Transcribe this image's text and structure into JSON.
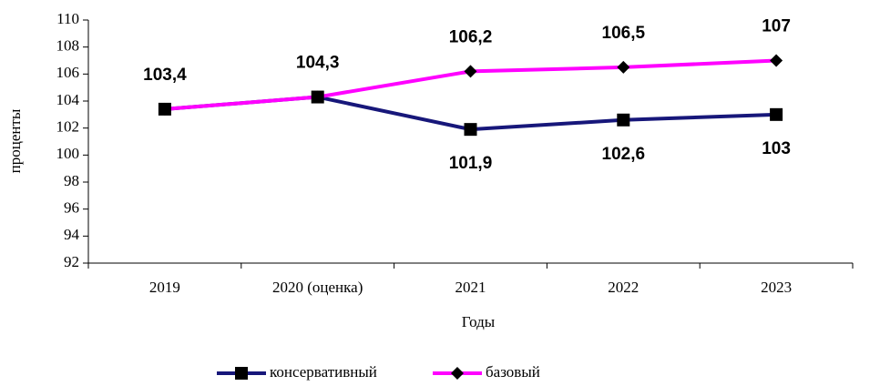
{
  "chart_data": {
    "type": "line",
    "xlabel": "Годы",
    "ylabel": "проценты",
    "categories": [
      "2019",
      "2020 (оценка)",
      "2021",
      "2022",
      "2023"
    ],
    "series": [
      {
        "name": "консервативный",
        "color": "#17177a",
        "marker": "square",
        "values": [
          103.4,
          104.3,
          101.9,
          102.6,
          103
        ],
        "value_labels": [
          "103,4",
          "104,3",
          "101,9",
          "102,6",
          "103"
        ]
      },
      {
        "name": "базовый",
        "color": "#ff00ff",
        "marker": "diamond",
        "values": [
          103.4,
          104.3,
          106.2,
          106.5,
          107
        ],
        "value_labels": [
          null,
          null,
          "106,2",
          "106,5",
          "107"
        ]
      }
    ],
    "ylim": [
      92,
      110
    ],
    "yticks": [
      92,
      94,
      96,
      98,
      100,
      102,
      104,
      106,
      108,
      110
    ],
    "grid": false,
    "legend": "bottom"
  }
}
